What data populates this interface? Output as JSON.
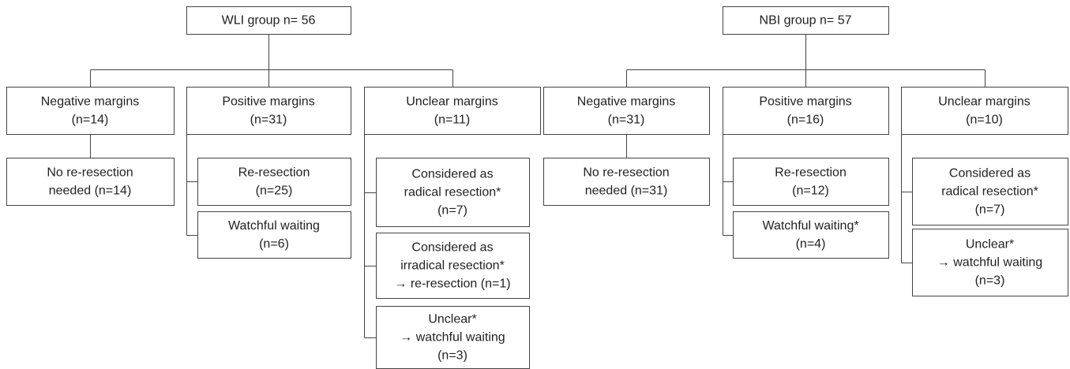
{
  "groups": [
    {
      "title": "WLI group n= 56",
      "branches": [
        {
          "lines": [
            "Negative margins",
            "(n=14)"
          ],
          "children": [
            {
              "lines": [
                "No re-resection",
                "needed (n=14)"
              ]
            }
          ]
        },
        {
          "lines": [
            "Positive margins",
            "(n=31)"
          ],
          "children": [
            {
              "lines": [
                "Re-resection",
                "(n=25)"
              ]
            },
            {
              "lines": [
                "Watchful waiting",
                "(n=6)"
              ]
            }
          ]
        },
        {
          "lines": [
            "Unclear margins",
            "(n=11)"
          ],
          "children": [
            {
              "lines": [
                "Considered as",
                "radical resection*",
                "(n=7)"
              ]
            },
            {
              "lines": [
                "Considered as",
                "irradical resection*",
                "→ re-resection (n=1)"
              ]
            },
            {
              "lines": [
                "Unclear*",
                "→ watchful waiting",
                "(n=3)"
              ]
            }
          ]
        }
      ]
    },
    {
      "title": "NBI group n= 57",
      "branches": [
        {
          "lines": [
            "Negative margins",
            "(n=31)"
          ],
          "children": [
            {
              "lines": [
                "No re-resection",
                "needed (n=31)"
              ]
            }
          ]
        },
        {
          "lines": [
            "Positive margins",
            "(n=16)"
          ],
          "children": [
            {
              "lines": [
                "Re-resection",
                "(n=12)"
              ]
            },
            {
              "lines": [
                "Watchful waiting*",
                "(n=4)"
              ]
            }
          ]
        },
        {
          "lines": [
            "Unclear margins",
            "(n=10)"
          ],
          "children": [
            {
              "lines": [
                "Considered as",
                "radical resection*",
                "(n=7)"
              ]
            },
            {
              "lines": [
                "Unclear*",
                "→ watchful waiting",
                "(n=3)"
              ]
            }
          ]
        }
      ]
    }
  ]
}
